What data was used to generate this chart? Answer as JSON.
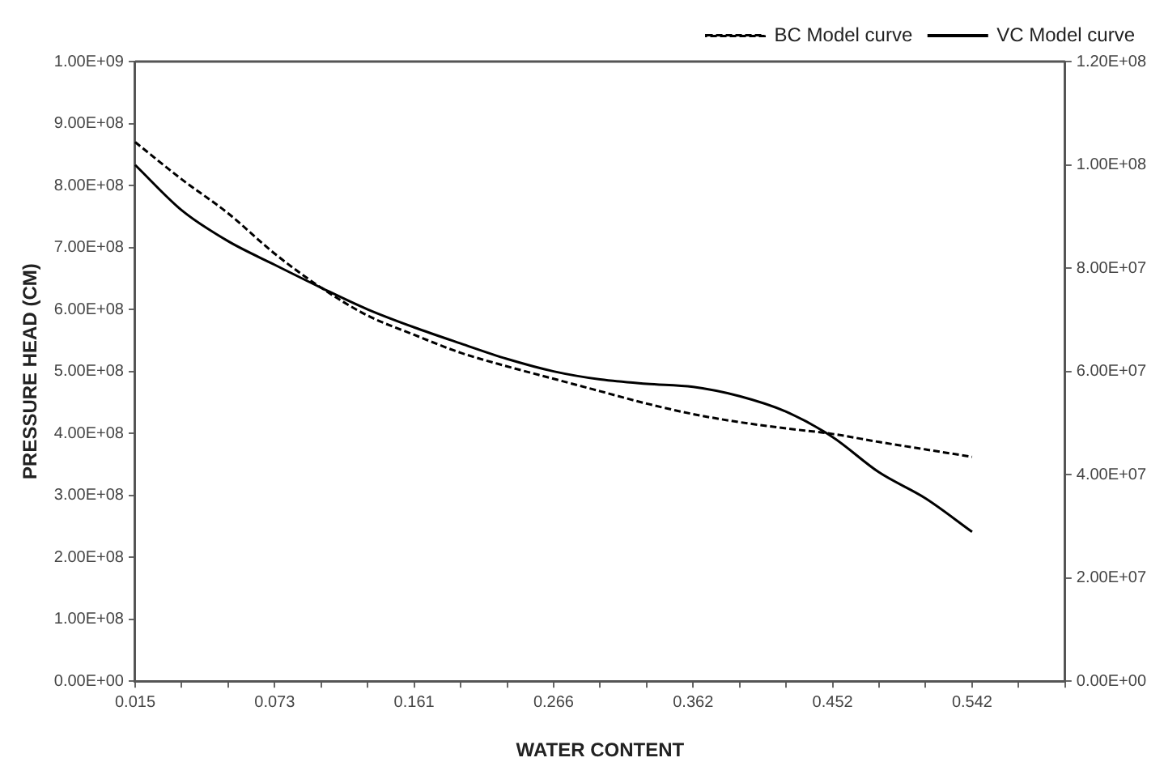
{
  "chart_data": {
    "type": "line",
    "xlabel": "WATER CONTENT",
    "ylabel": "PRESSURE HEAD (CM)",
    "categories": [
      "0.015",
      null,
      null,
      "0.073",
      null,
      null,
      "0.161",
      null,
      null,
      "0.266",
      null,
      null,
      "0.362",
      null,
      null,
      "0.452",
      null,
      null,
      "0.542",
      null,
      null
    ],
    "series": [
      {
        "name": "BC Model curve",
        "color": "#000000",
        "line_style": "dashed",
        "values": [
          870000000,
          810000000,
          755000000,
          690000000,
          635000000,
          590000000,
          559000000,
          530000000,
          508000000,
          488000000,
          468000000,
          448000000,
          431000000,
          418000000,
          408000000,
          399000000,
          386000000,
          374000000,
          362000000,
          null,
          null
        ]
      },
      {
        "name": "VC Model curve",
        "color": "#000000",
        "line_style": "solid",
        "values": [
          833000000,
          760000000,
          710000000,
          672000000,
          635000000,
          600000000,
          571000000,
          545000000,
          520000000,
          500000000,
          487000000,
          480000000,
          475000000,
          460000000,
          435000000,
          394000000,
          337000000,
          295000000,
          241000000,
          null,
          null
        ]
      }
    ],
    "ylim": [
      0,
      1000000000
    ],
    "yticks": [
      {
        "value": 0,
        "label": "0.00E+00"
      },
      {
        "value": 100000000,
        "label": "1.00E+08"
      },
      {
        "value": 200000000,
        "label": "2.00E+08"
      },
      {
        "value": 300000000,
        "label": "3.00E+08"
      },
      {
        "value": 400000000,
        "label": "4.00E+08"
      },
      {
        "value": 500000000,
        "label": "5.00E+08"
      },
      {
        "value": 600000000,
        "label": "6.00E+08"
      },
      {
        "value": 700000000,
        "label": "7.00E+08"
      },
      {
        "value": 800000000,
        "label": "8.00E+08"
      },
      {
        "value": 900000000,
        "label": "9.00E+08"
      },
      {
        "value": 1000000000,
        "label": "1.00E+09"
      }
    ],
    "y2lim": [
      0,
      120000000
    ],
    "y2ticks": [
      {
        "value": 0,
        "label": "0.00E+00"
      },
      {
        "value": 20000000,
        "label": "2.00E+07"
      },
      {
        "value": 40000000,
        "label": "4.00E+07"
      },
      {
        "value": 60000000,
        "label": "6.00E+07"
      },
      {
        "value": 80000000,
        "label": "8.00E+07"
      },
      {
        "value": 100000000,
        "label": "1.00E+08"
      },
      {
        "value": 120000000,
        "label": "1.20E+08"
      }
    ],
    "grid": false,
    "legend": "top right",
    "marker": "none"
  }
}
